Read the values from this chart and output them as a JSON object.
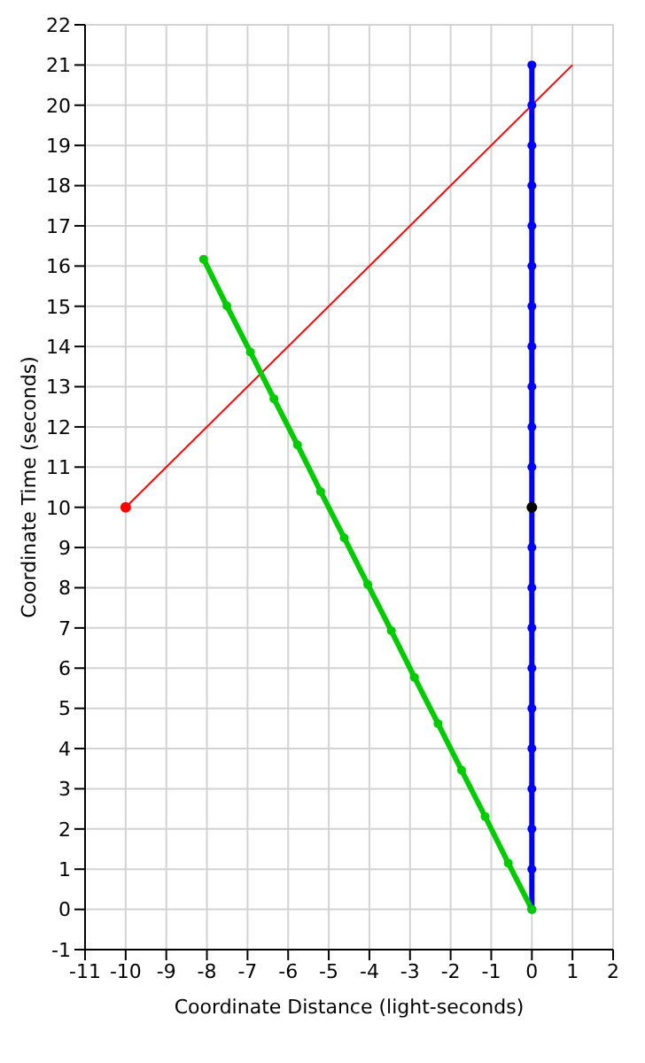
{
  "chart_data": {
    "type": "line",
    "xlabel": "Coordinate Distance (light-seconds)",
    "ylabel": "Coordinate Time (seconds)",
    "xlim": [
      -11,
      2
    ],
    "xticks": [
      -11,
      -10,
      -9,
      -8,
      -7,
      -6,
      -5,
      -4,
      -3,
      -2,
      -1,
      0,
      1,
      2
    ],
    "ylim": [
      -1,
      22
    ],
    "yticks": [
      -1,
      0,
      1,
      2,
      3,
      4,
      5,
      6,
      7,
      8,
      9,
      10,
      11,
      12,
      13,
      14,
      15,
      16,
      17,
      18,
      19,
      20,
      21,
      22
    ],
    "grid": true,
    "legend": false,
    "series": [
      {
        "color": "#ff0000",
        "marker": "none",
        "x": [
          -10,
          1
        ],
        "values": [
          10,
          21
        ]
      },
      {
        "color": "#0000ff",
        "marker": "circle",
        "x": [
          0,
          0,
          0,
          0,
          0,
          0,
          0,
          0,
          0,
          0,
          0,
          0,
          0,
          0,
          0,
          0,
          0,
          0,
          0,
          0,
          0,
          0
        ],
        "values": [
          0,
          1,
          2,
          3,
          4,
          5,
          6,
          7,
          8,
          9,
          10,
          11,
          12,
          13,
          14,
          15,
          16,
          17,
          18,
          19,
          20,
          21
        ]
      },
      {
        "color": "#00cc00",
        "marker": "circle",
        "x": [
          0,
          -0.58,
          -1.15,
          -1.73,
          -2.31,
          -2.89,
          -3.46,
          -4.04,
          -4.62,
          -5.2,
          -5.77,
          -6.35,
          -6.93,
          -7.51,
          -8.08
        ],
        "values": [
          0,
          1.15,
          2.31,
          3.46,
          4.62,
          5.77,
          6.93,
          8.08,
          9.24,
          10.39,
          11.55,
          12.7,
          13.86,
          15.01,
          16.17
        ]
      },
      {
        "type": "scatter",
        "color": "#ff0000",
        "marker": "circle",
        "x": [
          -10
        ],
        "values": [
          10
        ]
      },
      {
        "type": "scatter",
        "color": "#000000",
        "marker": "circle",
        "x": [
          0
        ],
        "values": [
          10
        ]
      }
    ]
  }
}
